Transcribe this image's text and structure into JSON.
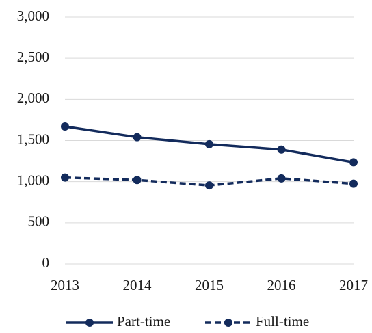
{
  "chart_data": {
    "type": "line",
    "categories": [
      "2013",
      "2014",
      "2015",
      "2016",
      "2017"
    ],
    "series": [
      {
        "name": "Part-time",
        "color": "#132b5c",
        "line_style": "solid",
        "values": [
          1670,
          1540,
          1455,
          1390,
          1235
        ]
      },
      {
        "name": "Full-time",
        "color": "#132b5c",
        "line_style": "dashed",
        "values": [
          1050,
          1020,
          955,
          1040,
          975
        ]
      }
    ],
    "ylim": [
      0,
      3000
    ],
    "yticks": [
      0,
      500,
      {
        "value": 1000,
        "label": "1,000"
      },
      {
        "value": 1500,
        "label": "1,500"
      },
      {
        "value": 2000,
        "label": "2,000"
      },
      {
        "value": 2500,
        "label": "2,500"
      },
      {
        "value": 3000,
        "label": "3,000"
      }
    ],
    "grid": true,
    "legend": "bottom"
  }
}
